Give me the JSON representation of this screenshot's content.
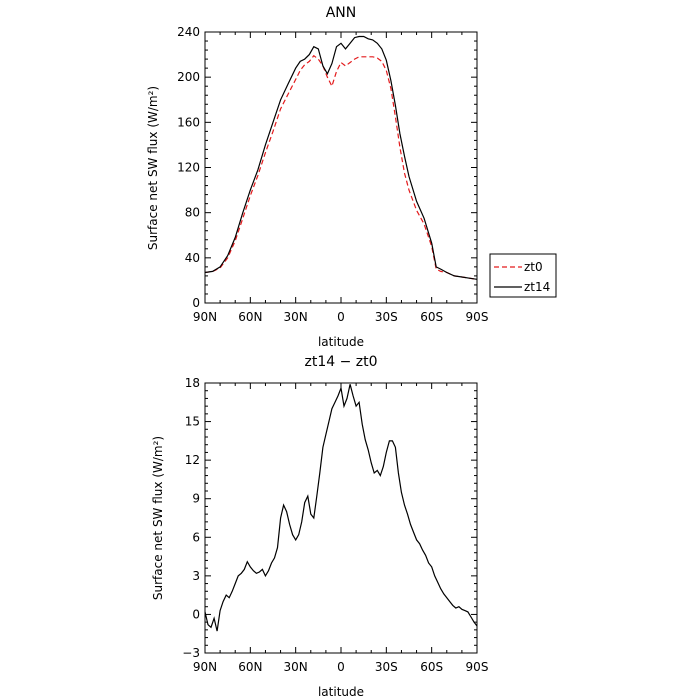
{
  "chart_data": [
    {
      "type": "line",
      "title": "ANN",
      "xlabel": "latitude",
      "ylabel": "Surface net SW flux (W/m²)",
      "xlim": [
        90,
        -90
      ],
      "ylim": [
        0,
        240
      ],
      "x_ticks": [
        90,
        60,
        30,
        0,
        -30,
        -60,
        -90
      ],
      "x_tick_labels": [
        "90N",
        "60N",
        "30N",
        "0",
        "30S",
        "60S",
        "90S"
      ],
      "y_ticks": [
        0,
        40,
        80,
        120,
        160,
        200,
        240
      ],
      "y_tick_labels": [
        "0",
        "40",
        "80",
        "120",
        "160",
        "200",
        "240"
      ],
      "legend_position": "right",
      "series": [
        {
          "name": "zt0",
          "color": "#e31a1c",
          "dash": "dashed",
          "x": [
            90,
            85,
            80,
            75,
            70,
            65,
            60,
            55,
            50,
            45,
            40,
            35,
            30,
            27,
            24,
            21,
            18,
            15,
            12,
            9,
            6,
            3,
            0,
            -3,
            -6,
            -9,
            -12,
            -15,
            -18,
            -21,
            -24,
            -27,
            -30,
            -33,
            -36,
            -39,
            -42,
            -45,
            -50,
            -55,
            -60,
            -63,
            -66,
            -70,
            -75,
            -80,
            -85,
            -90
          ],
          "y": [
            27,
            28,
            31,
            40,
            55,
            75,
            95,
            113,
            133,
            152,
            172,
            185,
            198,
            206,
            211,
            214,
            219,
            216,
            210,
            200,
            192,
            205,
            213,
            210,
            213,
            216,
            218,
            218,
            218,
            218,
            217,
            214,
            206,
            190,
            165,
            138,
            115,
            100,
            82,
            70,
            50,
            30,
            28,
            27,
            24,
            23,
            22,
            21
          ]
        },
        {
          "name": "zt14",
          "color": "#000000",
          "dash": "solid",
          "x": [
            90,
            85,
            80,
            75,
            70,
            65,
            60,
            55,
            50,
            45,
            40,
            35,
            30,
            27,
            24,
            21,
            18,
            15,
            12,
            9,
            6,
            3,
            0,
            -3,
            -6,
            -9,
            -12,
            -15,
            -18,
            -21,
            -24,
            -27,
            -30,
            -33,
            -36,
            -39,
            -42,
            -45,
            -50,
            -55,
            -60,
            -63,
            -66,
            -70,
            -75,
            -80,
            -85,
            -90
          ],
          "y": [
            27,
            28,
            32,
            42,
            58,
            80,
            100,
            118,
            140,
            160,
            180,
            194,
            208,
            214,
            216,
            220,
            227,
            225,
            210,
            203,
            212,
            227,
            230,
            225,
            230,
            235,
            236,
            236,
            234,
            233,
            230,
            225,
            215,
            197,
            175,
            150,
            130,
            112,
            90,
            75,
            53,
            32,
            30,
            27,
            24,
            23,
            22,
            21
          ]
        }
      ]
    },
    {
      "type": "line",
      "title": "zt14 − zt0",
      "xlabel": "latitude",
      "ylabel": "Surface net SW flux (W/m²)",
      "xlim": [
        90,
        -90
      ],
      "ylim": [
        -3,
        18
      ],
      "x_ticks": [
        90,
        60,
        30,
        0,
        -30,
        -60,
        -90
      ],
      "x_tick_labels": [
        "90N",
        "60N",
        "30N",
        "0",
        "30S",
        "60S",
        "90S"
      ],
      "y_ticks": [
        -3,
        0,
        3,
        6,
        9,
        12,
        15,
        18
      ],
      "y_tick_labels": [
        "−3",
        "0",
        "3",
        "6",
        "9",
        "12",
        "15",
        "18"
      ],
      "series": [
        {
          "color": "#000000",
          "dash": "solid",
          "x": [
            90,
            88,
            86,
            84,
            82,
            80,
            78,
            76,
            74,
            72,
            70,
            68,
            66,
            64,
            62,
            60,
            58,
            56,
            54,
            52,
            50,
            48,
            46,
            44,
            42,
            40,
            38,
            36,
            34,
            32,
            30,
            28,
            26,
            24,
            22,
            20,
            18,
            16,
            14,
            12,
            10,
            8,
            6,
            4,
            2,
            0,
            -2,
            -4,
            -6,
            -8,
            -10,
            -12,
            -14,
            -16,
            -18,
            -20,
            -22,
            -24,
            -26,
            -28,
            -30,
            -32,
            -34,
            -36,
            -38,
            -40,
            -42,
            -44,
            -46,
            -48,
            -50,
            -52,
            -54,
            -56,
            -58,
            -60,
            -62,
            -64,
            -66,
            -68,
            -70,
            -72,
            -74,
            -76,
            -78,
            -80,
            -82,
            -84,
            -86,
            -88,
            -90
          ],
          "y": [
            0.2,
            -0.8,
            -1.0,
            -0.3,
            -1.3,
            0.3,
            1.0,
            1.5,
            1.3,
            1.8,
            2.4,
            3.0,
            3.2,
            3.5,
            4.1,
            3.7,
            3.4,
            3.2,
            3.3,
            3.5,
            3.0,
            3.4,
            4.0,
            4.4,
            5.2,
            7.5,
            8.5,
            8.0,
            7.0,
            6.2,
            5.8,
            6.2,
            7.2,
            8.7,
            9.2,
            7.8,
            7.5,
            9.2,
            11.0,
            13.0,
            14.0,
            15.0,
            16.0,
            16.5,
            17.0,
            17.6,
            16.2,
            16.8,
            17.9,
            17.0,
            16.2,
            16.5,
            14.8,
            13.6,
            12.8,
            11.8,
            11.0,
            11.2,
            10.8,
            11.5,
            12.6,
            13.5,
            13.5,
            13.0,
            11.0,
            9.5,
            8.5,
            7.8,
            7.0,
            6.4,
            5.8,
            5.5,
            5.0,
            4.6,
            4.0,
            3.7,
            3.0,
            2.5,
            2.0,
            1.6,
            1.3,
            1.0,
            0.7,
            0.5,
            0.6,
            0.4,
            0.3,
            0.2,
            -0.2,
            -0.6,
            -0.9
          ]
        }
      ]
    }
  ]
}
